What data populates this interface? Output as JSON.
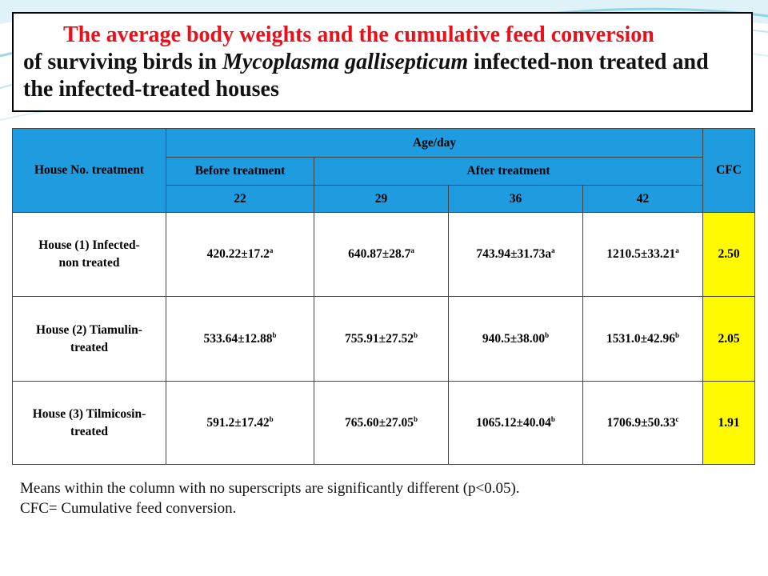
{
  "title": {
    "line_red": "The average body weights and the cumulative feed conversion",
    "part1": "of surviving birds in ",
    "italic": "Mycoplasma gallisepticum",
    "part2": " infected-non treated and the infected-treated houses"
  },
  "table": {
    "header": {
      "house_label": "House No. treatment",
      "age_label": "Age/day",
      "cfc_label": "CFC",
      "before_label": "Before treatment",
      "after_label": "After treatment",
      "days": [
        "22",
        "29",
        "36",
        "42"
      ]
    },
    "rows": [
      {
        "house": "House (1) Infected-non treated",
        "values": [
          {
            "v": "420.22±17.2",
            "s": "a"
          },
          {
            "v": "640.87±28.7",
            "s": "a"
          },
          {
            "v": "743.94±31.73a",
            "s": "a"
          },
          {
            "v": "1210.5±33.21",
            "s": "a"
          }
        ],
        "cfc": "2.50"
      },
      {
        "house": "House (2) Tiamulin-treated",
        "values": [
          {
            "v": "533.64±12.88",
            "s": "b"
          },
          {
            "v": "755.91±27.52",
            "s": "b"
          },
          {
            "v": "940.5±38.00",
            "s": "b"
          },
          {
            "v": "1531.0±42.96",
            "s": "b"
          }
        ],
        "cfc": "2.05"
      },
      {
        "house": "House (3) Tilmicosin-treated",
        "values": [
          {
            "v": "591.2±17.42",
            "s": "b"
          },
          {
            "v": "765.60±27.05",
            "s": "b"
          },
          {
            "v": "1065.12±40.04",
            "s": "b"
          },
          {
            "v": "1706.9±50.33",
            "s": "c"
          }
        ],
        "cfc": "1.91"
      }
    ]
  },
  "notes": [
    "Means within the column with no superscripts are significantly different (p<0.05).",
    "CFC= Cumulative feed conversion."
  ],
  "colors": {
    "title_red": "#e8101b",
    "header_blue": "#1f9be0",
    "cfc_yellow": "#fffa00",
    "decor_teal": "#6fc7dc"
  }
}
